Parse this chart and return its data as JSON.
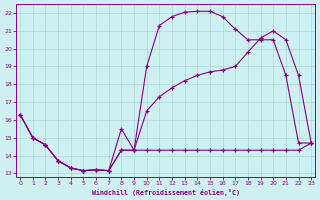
{
  "background_color": "#cff0f0",
  "grid_color": "#a8d8d8",
  "line_color": "#880088",
  "marker_color": "#880088",
  "xlabel": "Windchill (Refroidissement éolien,°C)",
  "xlabel_color": "#880088",
  "tick_color": "#880088",
  "ylim": [
    12.8,
    22.5
  ],
  "xlim": [
    -0.3,
    23.3
  ],
  "yticks": [
    13,
    14,
    15,
    16,
    17,
    18,
    19,
    20,
    21,
    22
  ],
  "xticks": [
    0,
    1,
    2,
    3,
    4,
    5,
    6,
    7,
    8,
    9,
    10,
    11,
    12,
    13,
    14,
    15,
    16,
    17,
    18,
    19,
    20,
    21,
    22,
    23
  ],
  "series1_x": [
    0,
    1,
    2,
    3,
    4,
    5,
    6,
    7,
    8,
    9,
    10,
    11,
    12,
    13,
    14,
    15,
    16,
    17,
    18,
    19,
    20,
    21,
    22,
    23
  ],
  "series1_y": [
    16.3,
    15.0,
    14.6,
    13.7,
    13.3,
    13.15,
    13.2,
    13.15,
    15.5,
    14.3,
    19.0,
    21.3,
    21.8,
    22.05,
    22.1,
    22.1,
    21.8,
    21.1,
    20.5,
    20.5,
    20.5,
    18.5,
    14.7,
    14.7
  ],
  "series2_x": [
    0,
    1,
    2,
    3,
    4,
    5,
    6,
    7,
    8,
    9,
    10,
    11,
    12,
    13,
    14,
    15,
    16,
    17,
    18,
    19,
    20,
    21,
    22,
    23
  ],
  "series2_y": [
    16.3,
    15.0,
    14.6,
    13.7,
    13.3,
    13.15,
    13.2,
    13.15,
    14.3,
    14.3,
    16.5,
    17.3,
    17.8,
    18.2,
    18.5,
    18.7,
    18.8,
    19.0,
    19.8,
    20.6,
    21.0,
    20.5,
    18.5,
    14.7
  ],
  "series3_x": [
    0,
    1,
    2,
    3,
    4,
    5,
    6,
    7,
    8,
    9,
    10,
    11,
    12,
    13,
    14,
    15,
    16,
    17,
    18,
    19,
    20,
    21,
    22,
    23
  ],
  "series3_y": [
    16.3,
    15.0,
    14.6,
    13.7,
    13.3,
    13.15,
    13.2,
    13.15,
    14.3,
    14.3,
    14.3,
    14.3,
    14.3,
    14.3,
    14.3,
    14.3,
    14.3,
    14.3,
    14.3,
    14.3,
    14.3,
    14.3,
    14.3,
    14.7
  ]
}
